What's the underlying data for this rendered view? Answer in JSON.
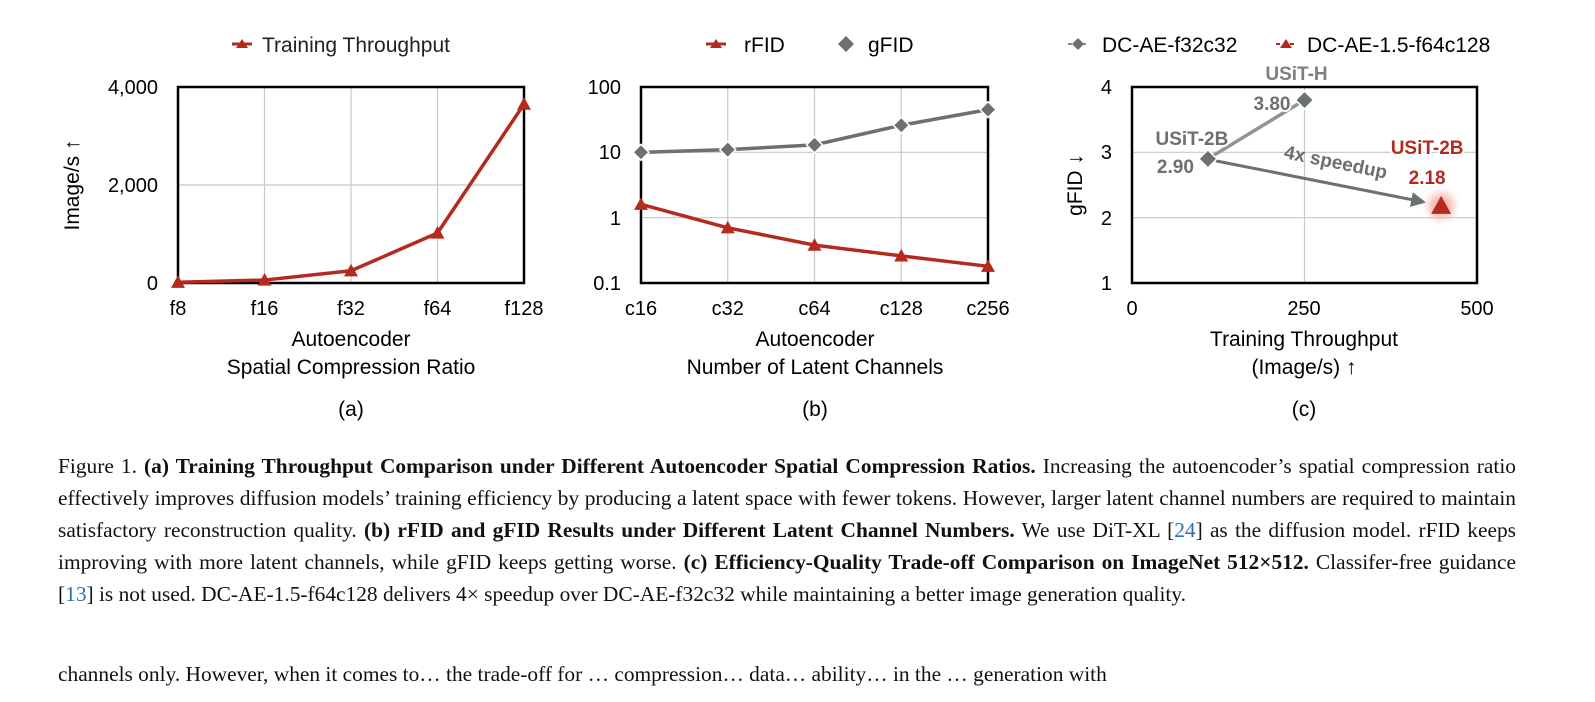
{
  "colors": {
    "red": "#b52a1f",
    "gray": "#6a716f",
    "grid": "#c8c8c8"
  },
  "chart_data": [
    {
      "type": "line",
      "panel_label": "(a)",
      "categories": [
        "f8",
        "f16",
        "f32",
        "f64",
        "f128"
      ],
      "series": [
        {
          "name": "Training Throughput",
          "values": [
            15,
            60,
            250,
            1020,
            3650
          ],
          "color": "#b52a1f",
          "marker": "triangle"
        }
      ],
      "ylabel": "Image/s ↑",
      "xlabel": [
        "Autoencoder",
        "Spatial Compression Ratio"
      ],
      "yticks": [
        "0",
        "2,000",
        "4,000"
      ],
      "ylim": [
        0,
        4000
      ],
      "grid": true,
      "legend": "top"
    },
    {
      "type": "line",
      "panel_label": "(b)",
      "categories": [
        "c16",
        "c32",
        "c64",
        "c128",
        "c256"
      ],
      "series": [
        {
          "name": "rFID",
          "values": [
            1.6,
            0.7,
            0.38,
            0.26,
            0.18
          ],
          "color": "#b52a1f",
          "marker": "triangle"
        },
        {
          "name": "gFID",
          "values": [
            10,
            11,
            13,
            26,
            45
          ],
          "color": "#6a716f",
          "marker": "diamond"
        }
      ],
      "yscale": "log",
      "ylim": [
        0.1,
        100
      ],
      "yticks": [
        "0.1",
        "1",
        "10",
        "100"
      ],
      "xlabel": [
        "Autoencoder",
        "Number of Latent Channels"
      ],
      "grid": true,
      "legend": "top"
    },
    {
      "type": "scatter",
      "panel_label": "(c)",
      "series": [
        {
          "name": "DC-AE-f32c32",
          "color": "#6a716f",
          "marker": "diamond",
          "points": [
            {
              "x": 110,
              "y": 2.9,
              "label": "USiT-2B",
              "value_label": "2.90"
            },
            {
              "x": 250,
              "y": 3.8,
              "label": "USiT-H",
              "value_label": "3.80"
            }
          ]
        },
        {
          "name": "DC-AE-1.5-f64c128",
          "color": "#b52a1f",
          "marker": "triangle",
          "points": [
            {
              "x": 448,
              "y": 2.18,
              "label": "USiT-2B",
              "value_label": "2.18"
            }
          ]
        }
      ],
      "annotation": "4x speedup",
      "xlim": [
        0,
        500
      ],
      "ylim": [
        1,
        4
      ],
      "xticks": [
        "0",
        "250",
        "500"
      ],
      "yticks": [
        "1",
        "2",
        "3",
        "4"
      ],
      "xlabel": [
        "Training Throughput",
        "(Image/s) ↑"
      ],
      "ylabel": "gFID ↓",
      "grid": true,
      "legend": "top"
    }
  ],
  "caption": {
    "figure_label": "Figure 1.",
    "a_title": "(a) Training Throughput Comparison under Different Autoencoder Spatial Compression Ratios.",
    "a_text": "Increasing the autoencoder’s spatial compression ratio effectively improves diffusion models’ training efficiency by producing a latent space with fewer tokens. However, larger latent channel numbers are required to maintain satisfactory reconstruction quality.",
    "b_title": "(b) rFID and gFID Results under Different Latent Channel Numbers.",
    "b_text_1": "We use DiT-XL [",
    "b_ref": "24",
    "b_text_2": "] as the diffusion model. rFID keeps improving with more latent channels, while gFID keeps getting worse.",
    "c_title": "(c) Efficiency-Quality Trade-off Comparison on ImageNet 512×512.",
    "c_text_1": "Classifer-free guidance [",
    "c_ref": "13",
    "c_text_2": "] is not used. DC-AE-1.5-f64c128 delivers 4× speedup over DC-AE-f32c32 while maintaining a better image generation quality."
  },
  "body_text_cut": "channels only. However, when it comes to… the trade-off for … compression… data… ability… in the … generation with"
}
